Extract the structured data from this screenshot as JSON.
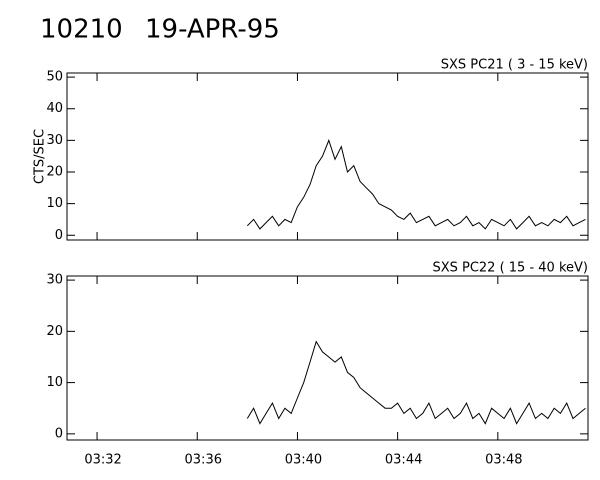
{
  "header": {
    "id": "10210",
    "date": "19-APR-95"
  },
  "chart_data": [
    {
      "type": "line",
      "title": "SXS PC21  (  3 - 15 keV)",
      "y_label": "CTS/SEC",
      "x": [
        218,
        218.25,
        218.5,
        218.75,
        219,
        219.25,
        219.5,
        219.75,
        220,
        220.25,
        220.5,
        220.75,
        221,
        221.25,
        221.5,
        221.75,
        222,
        222.25,
        222.5,
        222.75,
        223,
        223.25,
        223.5,
        223.75,
        224,
        224.25,
        224.5,
        224.75,
        225,
        225.25,
        225.5,
        225.75,
        226,
        226.25,
        226.5,
        226.75,
        227,
        227.25,
        227.5,
        227.75,
        228,
        228.25,
        228.5,
        228.75,
        229,
        229.25,
        229.5,
        229.75,
        230,
        230.25,
        230.5,
        230.75,
        231,
        231.25,
        231.5
      ],
      "series": [
        {
          "color": "#000000",
          "values": [
            3,
            5,
            2,
            4,
            6,
            3,
            5,
            4,
            9,
            12,
            16,
            22,
            25,
            30,
            24,
            28,
            20,
            22,
            17,
            15,
            13,
            10,
            9,
            8,
            6,
            5,
            7,
            4,
            5,
            6,
            3,
            4,
            5,
            3,
            4,
            6,
            3,
            4,
            2,
            5,
            4,
            3,
            5,
            2,
            4,
            6,
            3,
            4,
            3,
            5,
            4,
            6,
            3,
            4,
            5
          ]
        }
      ],
      "xlim": [
        210.8,
        231.6
      ],
      "xticks": [
        212,
        216,
        220,
        224,
        228
      ],
      "ylim": [
        -1.5,
        51.3
      ],
      "yticks": [
        0,
        10,
        20,
        30,
        40,
        50
      ]
    },
    {
      "type": "line",
      "title": "SXS PC22  ( 15 - 40 keV)",
      "x": [
        218,
        218.25,
        218.5,
        218.75,
        219,
        219.25,
        219.5,
        219.75,
        220,
        220.25,
        220.5,
        220.75,
        221,
        221.25,
        221.5,
        221.75,
        222,
        222.25,
        222.5,
        222.75,
        223,
        223.25,
        223.5,
        223.75,
        224,
        224.25,
        224.5,
        224.75,
        225,
        225.25,
        225.5,
        225.75,
        226,
        226.25,
        226.5,
        226.75,
        227,
        227.25,
        227.5,
        227.75,
        228,
        228.25,
        228.5,
        228.75,
        229,
        229.25,
        229.5,
        229.75,
        230,
        230.25,
        230.5,
        230.75,
        231,
        231.25,
        231.5
      ],
      "series": [
        {
          "color": "#000000",
          "values": [
            3,
            5,
            2,
            4,
            6,
            3,
            5,
            4,
            7,
            10,
            14,
            18,
            16,
            15,
            14,
            15,
            12,
            11,
            9,
            8,
            7,
            6,
            5,
            5,
            6,
            4,
            5,
            3,
            4,
            6,
            3,
            4,
            5,
            3,
            4,
            6,
            3,
            4,
            2,
            5,
            4,
            3,
            5,
            2,
            4,
            6,
            3,
            4,
            3,
            5,
            4,
            6,
            3,
            4,
            5
          ]
        }
      ],
      "xlim": [
        210.8,
        231.6
      ],
      "xticks": [
        {
          "value": 212,
          "label": "03:32"
        },
        {
          "value": 216,
          "label": "03:36"
        },
        {
          "value": 220,
          "label": "03:40"
        },
        {
          "value": 224,
          "label": "03:44"
        },
        {
          "value": 228,
          "label": "03:48"
        }
      ],
      "ylim": [
        -1.2,
        30.8
      ],
      "yticks": [
        0,
        10,
        20,
        30
      ]
    }
  ]
}
